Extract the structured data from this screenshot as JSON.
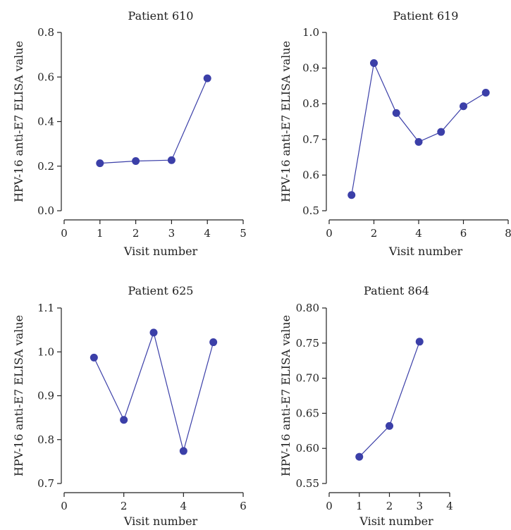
{
  "chart_data": [
    {
      "type": "line",
      "title": "Patient 610",
      "xlabel": "Visit number",
      "ylabel": "HPV-16 anti-E7 ELISA value",
      "xlim": [
        0,
        5
      ],
      "ylim": [
        0.0,
        0.8
      ],
      "x_ticks": [
        "0",
        "1",
        "2",
        "3",
        "4",
        "5"
      ],
      "y_ticks": [
        "0.0",
        "0.2",
        "0.4",
        "0.6",
        "0.8"
      ],
      "x": [
        1,
        2,
        3,
        4
      ],
      "values": [
        0.213,
        0.223,
        0.227,
        0.594
      ],
      "color": "#3b3fa8"
    },
    {
      "type": "line",
      "title": "Patient 619",
      "xlabel": "Visit number",
      "ylabel": "HPV-16 anti-E7 ELISA value",
      "xlim": [
        0,
        8
      ],
      "ylim": [
        0.5,
        1.0
      ],
      "x_ticks": [
        "0",
        "2",
        "4",
        "6",
        "8"
      ],
      "y_ticks": [
        "0.5",
        "0.6",
        "0.7",
        "0.8",
        "0.9",
        "1.0"
      ],
      "x": [
        1,
        2,
        3,
        4,
        5,
        6,
        7
      ],
      "values": [
        0.544,
        0.914,
        0.774,
        0.693,
        0.721,
        0.793,
        0.831
      ],
      "color": "#3b3fa8"
    },
    {
      "type": "line",
      "title": "Patient 625",
      "xlabel": "Visit number",
      "ylabel": "HPV-16 anti-E7 ELISA value",
      "xlim": [
        0,
        6
      ],
      "ylim": [
        0.7,
        1.1
      ],
      "x_ticks": [
        "0",
        "2",
        "4",
        "6"
      ],
      "y_ticks": [
        "0.7",
        "0.8",
        "0.9",
        "1.0",
        "1.1"
      ],
      "x": [
        1,
        2,
        3,
        4,
        5
      ],
      "values": [
        0.987,
        0.845,
        1.044,
        0.774,
        1.022
      ],
      "color": "#3b3fa8"
    },
    {
      "type": "line",
      "title": "Patient 864",
      "xlabel": "Visit number",
      "ylabel": "HPV-16 anti-E7 ELISA value",
      "xlim": [
        0,
        4
      ],
      "ylim": [
        0.55,
        0.8
      ],
      "x_ticks": [
        "0",
        "1",
        "2",
        "3",
        "4"
      ],
      "y_ticks": [
        "0.55",
        "0.60",
        "0.65",
        "0.70",
        "0.75",
        "0.80"
      ],
      "x": [
        1,
        2,
        3
      ],
      "values": [
        0.588,
        0.632,
        0.752
      ],
      "color": "#3b3fa8"
    }
  ]
}
